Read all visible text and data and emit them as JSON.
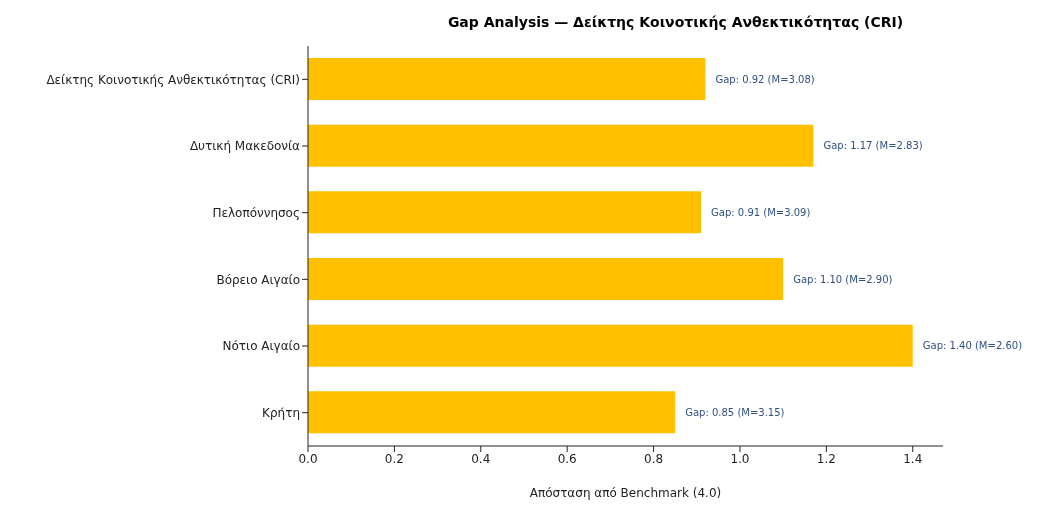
{
  "chart_data": {
    "type": "bar",
    "orientation": "horizontal",
    "title": "Gap Analysis — Δείκτης Κοινοτικής Ανθεκτικότητας (CRI)",
    "xlabel": "Απόσταση από Benchmark (4.0)",
    "categories": [
      "Δείκτης Κοινοτικής Ανθεκτικότητας (CRI)",
      "Δυτική Μακεδονία",
      "Πελοπόννησος",
      "Βόρειο Αιγαίο",
      "Νότιο Αιγαίο",
      "Κρήτη"
    ],
    "values": [
      0.92,
      1.17,
      0.91,
      1.1,
      1.4,
      0.85
    ],
    "value_labels": [
      "Gap: 0.92 (M=3.08)",
      "Gap: 1.17 (M=2.83)",
      "Gap: 0.91 (M=3.09)",
      "Gap: 1.10 (M=2.90)",
      "Gap: 1.40 (M=2.60)",
      "Gap: 0.85 (M=3.15)"
    ],
    "color": "#ffc000",
    "xlim": [
      0,
      1.47
    ],
    "xticks": [
      {
        "value": 0,
        "label": "0.0"
      },
      {
        "value": 0.2,
        "label": "0.2"
      },
      {
        "value": 0.4,
        "label": "0.4"
      },
      {
        "value": 0.6,
        "label": "0.6"
      },
      {
        "value": 0.8,
        "label": "0.8"
      },
      {
        "value": 1,
        "label": "1.0"
      },
      {
        "value": 1.2,
        "label": "1.2"
      },
      {
        "value": 1.4,
        "label": "1.4"
      }
    ]
  }
}
